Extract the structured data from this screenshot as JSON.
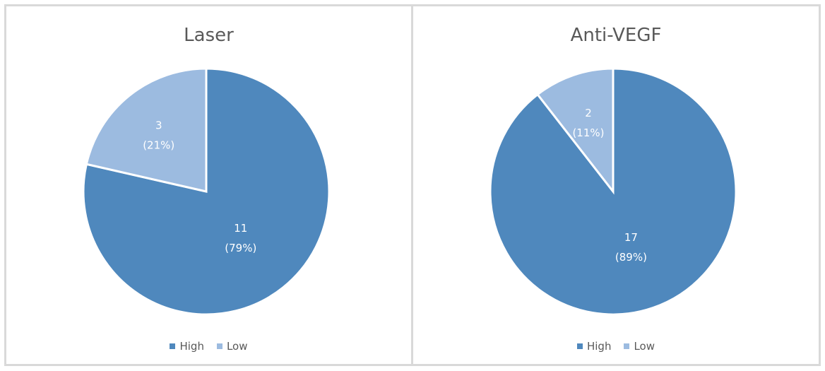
{
  "chart_data": [
    {
      "type": "pie",
      "title": "Laser",
      "categories": [
        "High",
        "Low"
      ],
      "values": [
        11,
        3
      ],
      "percent_labels": [
        "(79%)",
        "(21%)"
      ],
      "colors": [
        "#4f88bd",
        "#9cbbe0"
      ],
      "legend": "bottom"
    },
    {
      "type": "pie",
      "title": "Anti-VEGF",
      "categories": [
        "High",
        "Low"
      ],
      "values": [
        17,
        2
      ],
      "percent_labels": [
        "(89%)",
        "(11%)"
      ],
      "colors": [
        "#4f88bd",
        "#9cbbe0"
      ],
      "legend": "bottom"
    }
  ]
}
